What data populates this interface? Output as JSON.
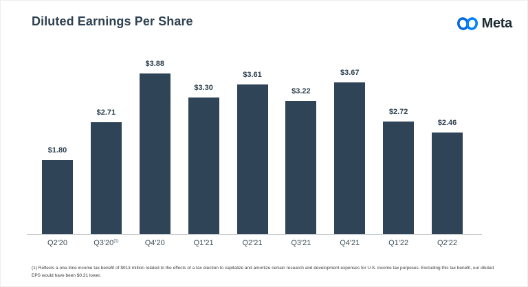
{
  "header": {
    "title": "Diluted Earnings Per Share",
    "brand": "Meta"
  },
  "chart_data": {
    "type": "bar",
    "title": "Diluted Earnings Per Share",
    "categories": [
      "Q2'20",
      "Q3'20",
      "Q4'20",
      "Q1'21",
      "Q2'21",
      "Q3'21",
      "Q4'21",
      "Q1'22",
      "Q2'22"
    ],
    "category_sups": [
      "",
      "(1)",
      "",
      "",
      "",
      "",
      "",
      "",
      ""
    ],
    "values": [
      1.8,
      2.71,
      3.88,
      3.3,
      3.61,
      3.22,
      3.67,
      2.72,
      2.46
    ],
    "value_labels": [
      "$1.80",
      "$2.71",
      "$3.88",
      "$3.30",
      "$3.61",
      "$3.22",
      "$3.67",
      "$2.72",
      "$2.46"
    ],
    "xlabel": "",
    "ylabel": "",
    "ylim": [
      0,
      4.08
    ],
    "grid": false,
    "legend": false,
    "bar_color": "#2f4456"
  },
  "footnote": {
    "text": "(1) Reflects a one-time income tax benefit of $913 million related to the effects of a tax election to capitalize and amortize certain research and development expenses for U.S. income tax purposes. Excluding this tax benefit, our diluted EPS would have been $0.31 lower."
  },
  "colors": {
    "bar": "#2f4456",
    "title_text": "#2e4150",
    "axis_line": "#c9cdd0",
    "brand_blue_left": "#0668e1",
    "brand_blue_right": "#0082fb",
    "brand_text": "#1c2b33"
  }
}
